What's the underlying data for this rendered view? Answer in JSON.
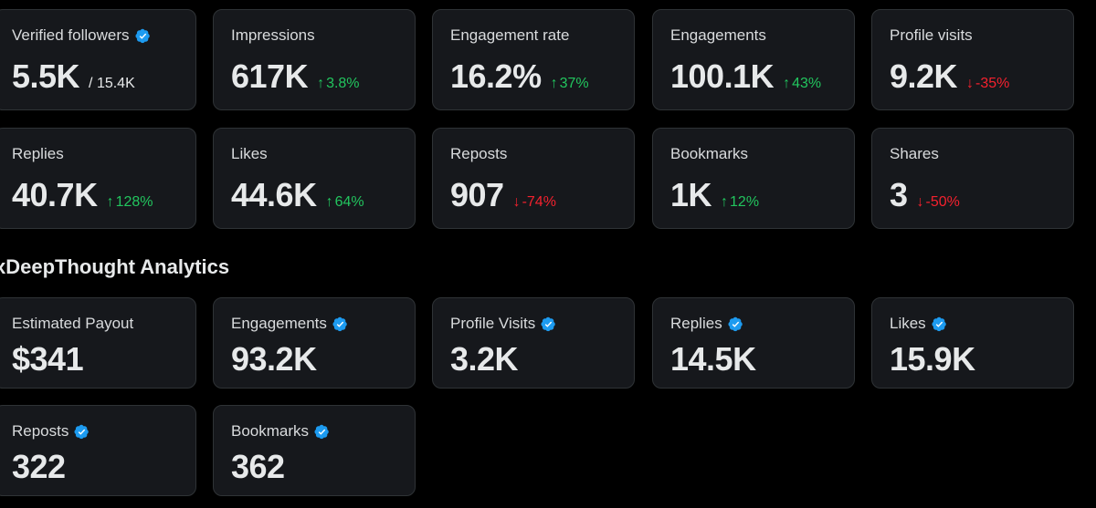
{
  "overview": {
    "cards": [
      {
        "label": "Verified followers",
        "verified": true,
        "value": "5.5K",
        "sub": "/ 15.4K"
      },
      {
        "label": "Impressions",
        "value": "617K",
        "delta": "3.8%",
        "dir": "up",
        "arrow": "↑"
      },
      {
        "label": "Engagement rate",
        "value": "16.2%",
        "delta": "37%",
        "dir": "up",
        "arrow": "↑"
      },
      {
        "label": "Engagements",
        "value": "100.1K",
        "delta": "43%",
        "dir": "up",
        "arrow": "↑"
      },
      {
        "label": "Profile visits",
        "value": "9.2K",
        "delta": "-35%",
        "dir": "down",
        "arrow": "↓"
      },
      {
        "label": "Replies",
        "value": "40.7K",
        "delta": "128%",
        "dir": "up",
        "arrow": "↑"
      },
      {
        "label": "Likes",
        "value": "44.6K",
        "delta": "64%",
        "dir": "up",
        "arrow": "↑"
      },
      {
        "label": "Reposts",
        "value": "907",
        "delta": "-74%",
        "dir": "down",
        "arrow": "↓"
      },
      {
        "label": "Bookmarks",
        "value": "1K",
        "delta": "12%",
        "dir": "up",
        "arrow": "↑"
      },
      {
        "label": "Shares",
        "value": "3",
        "delta": "-50%",
        "dir": "down",
        "arrow": "↓"
      }
    ]
  },
  "analytics": {
    "title": "xDeepThought Analytics",
    "cards": [
      {
        "label": "Estimated Payout",
        "verified": false,
        "value": "$341"
      },
      {
        "label": "Engagements",
        "verified": true,
        "value": "93.2K"
      },
      {
        "label": "Profile Visits",
        "verified": true,
        "value": "3.2K"
      },
      {
        "label": "Replies",
        "verified": true,
        "value": "14.5K"
      },
      {
        "label": "Likes",
        "verified": true,
        "value": "15.9K"
      },
      {
        "label": "Reposts",
        "verified": true,
        "value": "322"
      },
      {
        "label": "Bookmarks",
        "verified": true,
        "value": "362"
      }
    ]
  },
  "colors": {
    "background": "#000000",
    "card": "#16181c",
    "border": "#2f3336",
    "up": "#22c55e",
    "down": "#f4212e",
    "verified": "#1d9bf0"
  }
}
